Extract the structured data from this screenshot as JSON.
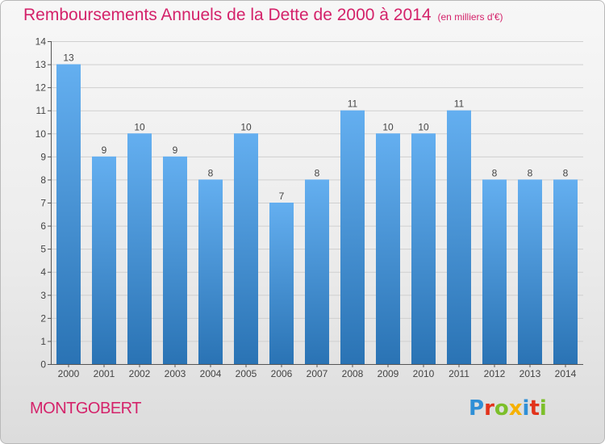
{
  "header": {
    "title": "Remboursements Annuels de la Dette de 2000 à 2014",
    "unit": "(en milliers d'€)"
  },
  "footer": {
    "commune": "MONTGOBERT",
    "brand": "Proxiti",
    "brand_letters": [
      {
        "ch": "P",
        "color": "#2f8fd6"
      },
      {
        "ch": "r",
        "color": "#e2331b"
      },
      {
        "ch": "o",
        "color": "#7cbf2a"
      },
      {
        "ch": "x",
        "color": "#f6b100"
      },
      {
        "ch": "i",
        "color": "#2f8fd6"
      },
      {
        "ch": "t",
        "color": "#e2331b"
      },
      {
        "ch": "i",
        "color": "#7cbf2a"
      }
    ]
  },
  "colors": {
    "title": "#d4226a",
    "bar_top": "#64aff0",
    "bar_bottom": "#2a73b4",
    "grid": "#cfcfcf",
    "axis": "#555555",
    "text": "#444444"
  },
  "chart_data": {
    "type": "bar",
    "title": "Remboursements Annuels de la Dette de 2000 à 2014",
    "subtitle": "(en milliers d'€)",
    "categories": [
      "2000",
      "2001",
      "2002",
      "2003",
      "2004",
      "2005",
      "2006",
      "2007",
      "2008",
      "2009",
      "2010",
      "2011",
      "2012",
      "2013",
      "2014"
    ],
    "values": [
      13,
      9,
      10,
      9,
      8,
      10,
      7,
      8,
      11,
      10,
      10,
      11,
      8,
      8,
      8
    ],
    "data_labels": [
      "13",
      "9",
      "10",
      "9",
      "8",
      "10",
      "7",
      "8",
      "11",
      "10",
      "10",
      "11",
      "8",
      "8",
      "8"
    ],
    "ylim": [
      0,
      14
    ],
    "yticks": [
      "0",
      "1",
      "2",
      "3",
      "4",
      "5",
      "6",
      "7",
      "8",
      "9",
      "10",
      "11",
      "12",
      "13",
      "14"
    ],
    "ytick_values": [
      0,
      1,
      2,
      3,
      4,
      5,
      6,
      7,
      8,
      9,
      10,
      11,
      12,
      13,
      14
    ],
    "grid": true,
    "legend": "none",
    "xlabel": "",
    "ylabel": ""
  }
}
